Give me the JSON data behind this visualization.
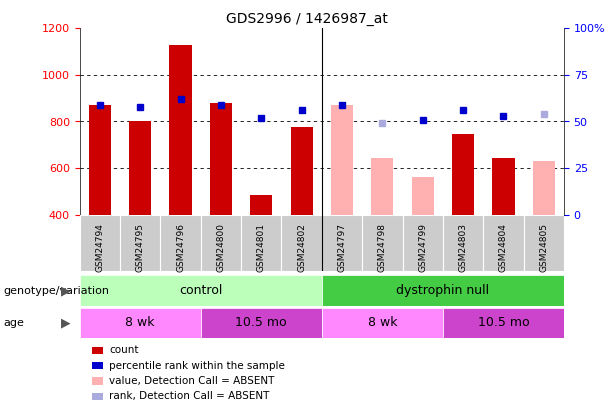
{
  "title": "GDS2996 / 1426987_at",
  "samples": [
    "GSM24794",
    "GSM24795",
    "GSM24796",
    "GSM24800",
    "GSM24801",
    "GSM24802",
    "GSM24797",
    "GSM24798",
    "GSM24799",
    "GSM24803",
    "GSM24804",
    "GSM24805"
  ],
  "count_values": [
    870,
    800,
    1130,
    880,
    485,
    775,
    870,
    645,
    560,
    745,
    645,
    630
  ],
  "count_absent": [
    false,
    false,
    false,
    false,
    false,
    false,
    true,
    true,
    true,
    false,
    false,
    true
  ],
  "percentile_values": [
    59,
    58,
    62,
    59,
    52,
    56,
    59,
    49,
    51,
    56,
    53,
    54
  ],
  "percentile_absent": [
    false,
    false,
    false,
    false,
    false,
    false,
    false,
    true,
    false,
    false,
    false,
    true
  ],
  "ylim_left": [
    400,
    1200
  ],
  "ylim_right": [
    0,
    100
  ],
  "yticks_left": [
    400,
    600,
    800,
    1000,
    1200
  ],
  "yticks_right": [
    0,
    25,
    50,
    75,
    100
  ],
  "bar_color_present": "#cc0000",
  "bar_color_absent": "#ffb0b0",
  "dot_color_present": "#0000cc",
  "dot_color_absent": "#aaaadd",
  "control_light_color": "#bbffbb",
  "dystrophin_color": "#44cc44",
  "age_light_color": "#ff88ff",
  "age_dark_color": "#cc44cc",
  "control_label": "control",
  "dystrophin_label": "dystrophin null",
  "age_labels": [
    "8 wk",
    "10.5 mo",
    "8 wk",
    "10.5 mo"
  ],
  "age_ranges": [
    [
      0,
      3
    ],
    [
      3,
      6
    ],
    [
      6,
      9
    ],
    [
      9,
      12
    ]
  ],
  "control_range": [
    0,
    6
  ],
  "dystrophin_range": [
    6,
    12
  ],
  "genotype_label": "genotype/variation",
  "age_label": "age",
  "legend_items": [
    {
      "color": "#cc0000",
      "label": "count"
    },
    {
      "color": "#0000cc",
      "label": "percentile rank within the sample"
    },
    {
      "color": "#ffb0b0",
      "label": "value, Detection Call = ABSENT"
    },
    {
      "color": "#aaaadd",
      "label": "rank, Detection Call = ABSENT"
    }
  ],
  "background_color": "#ffffff",
  "plot_bg_color": "#ffffff",
  "grid_color": "#000000",
  "xtick_bg": "#cccccc"
}
